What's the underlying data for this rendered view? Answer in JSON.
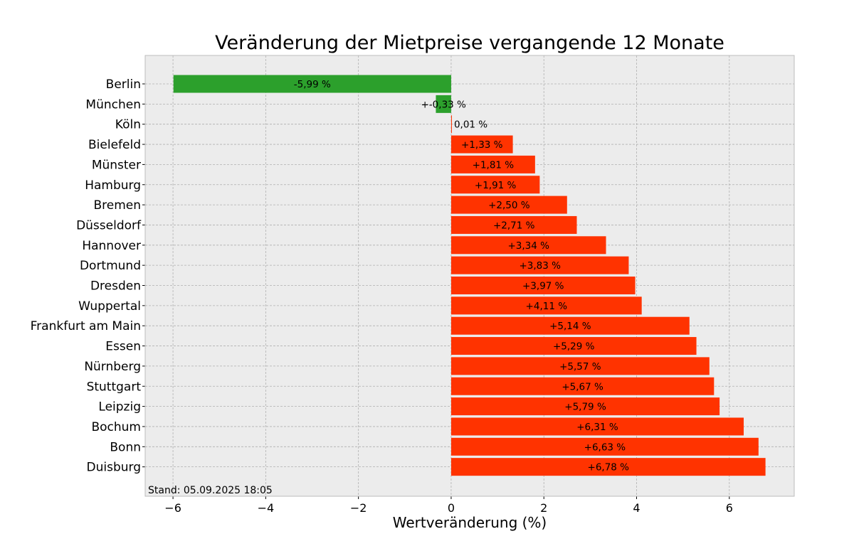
{
  "chart_data": {
    "type": "bar",
    "orientation": "horizontal",
    "title": "Veränderung der Mietpreise vergangende 12 Monate",
    "xlabel": "Wertveränderung (%)",
    "ylabel": "",
    "xlim": [
      -6.6,
      7.4
    ],
    "xticks": [
      -6,
      -4,
      -2,
      0,
      2,
      4,
      6
    ],
    "xtick_labels": [
      "−6",
      "−4",
      "−2",
      "0",
      "2",
      "4",
      "6"
    ],
    "grid": true,
    "annotation": "Stand: 05.09.2025 18:05",
    "colors": {
      "positive": "#ff3300",
      "negative": "#2ca02c",
      "zero": "#ff3300",
      "background": "#ececec",
      "grid": "#b0b0b0"
    },
    "categories": [
      "Berlin",
      "München",
      "Köln",
      "Bielefeld",
      "Münster",
      "Hamburg",
      "Bremen",
      "Düsseldorf",
      "Hannover",
      "Dortmund",
      "Dresden",
      "Wuppertal",
      "Frankfurt am Main",
      "Essen",
      "Nürnberg",
      "Stuttgart",
      "Leipzig",
      "Bochum",
      "Bonn",
      "Duisburg"
    ],
    "values": [
      -5.99,
      -0.33,
      0.01,
      1.33,
      1.81,
      1.91,
      2.5,
      2.71,
      3.34,
      3.83,
      3.97,
      4.11,
      5.14,
      5.29,
      5.57,
      5.67,
      5.79,
      6.31,
      6.63,
      6.78
    ],
    "data_labels": [
      "-5,99 %",
      "+-0,33 %",
      "0,01 %",
      "+1,33 %",
      "+1,81 %",
      "+1,91 %",
      "+2,50 %",
      "+2,71 %",
      "+3,34 %",
      "+3,83 %",
      "+3,97 %",
      "+4,11 %",
      "+5,14 %",
      "+5,29 %",
      "+5,57 %",
      "+5,67 %",
      "+5,79 %",
      "+6,31 %",
      "+6,63 %",
      "+6,78 %"
    ]
  }
}
